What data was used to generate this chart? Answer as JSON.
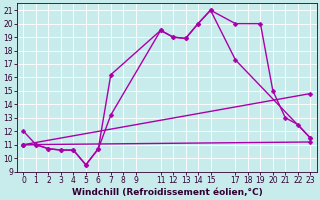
{
  "xlabel": "Windchill (Refroidissement éolien,°C)",
  "bg_color": "#c8ecec",
  "line_color": "#aa00aa",
  "xlim": [
    -0.5,
    23.5
  ],
  "ylim": [
    9,
    21.5
  ],
  "xticks": [
    0,
    1,
    2,
    3,
    4,
    5,
    6,
    7,
    8,
    9,
    11,
    12,
    13,
    14,
    15,
    17,
    18,
    19,
    20,
    21,
    22,
    23
  ],
  "yticks": [
    9,
    10,
    11,
    12,
    13,
    14,
    15,
    16,
    17,
    18,
    19,
    20,
    21
  ],
  "line1_x": [
    0,
    1,
    2,
    3,
    4,
    5,
    6,
    7,
    11,
    12,
    13,
    14,
    15,
    17,
    19,
    20,
    21,
    22,
    23
  ],
  "line1_y": [
    12,
    11,
    10.7,
    10.6,
    10.6,
    9.5,
    10.7,
    13.2,
    19.5,
    19.0,
    18.9,
    20.0,
    21.0,
    20.0,
    20.0,
    15.0,
    13.0,
    12.5,
    11.5
  ],
  "line2_x": [
    0,
    1,
    2,
    3,
    4,
    5,
    6,
    7,
    11,
    12,
    13,
    14,
    15,
    17,
    23
  ],
  "line2_y": [
    11,
    11,
    10.7,
    10.6,
    10.6,
    9.5,
    10.7,
    16.2,
    19.5,
    19.0,
    18.9,
    20.0,
    21.0,
    17.3,
    11.5
  ],
  "line3_x": [
    0,
    23
  ],
  "line3_y": [
    11.0,
    11.2
  ],
  "line4_x": [
    0,
    23
  ],
  "line4_y": [
    11.0,
    14.8
  ],
  "marker": "D",
  "markersize": 2.5,
  "linewidth": 1.0,
  "tick_fontsize": 5.5,
  "label_fontsize": 6.5
}
